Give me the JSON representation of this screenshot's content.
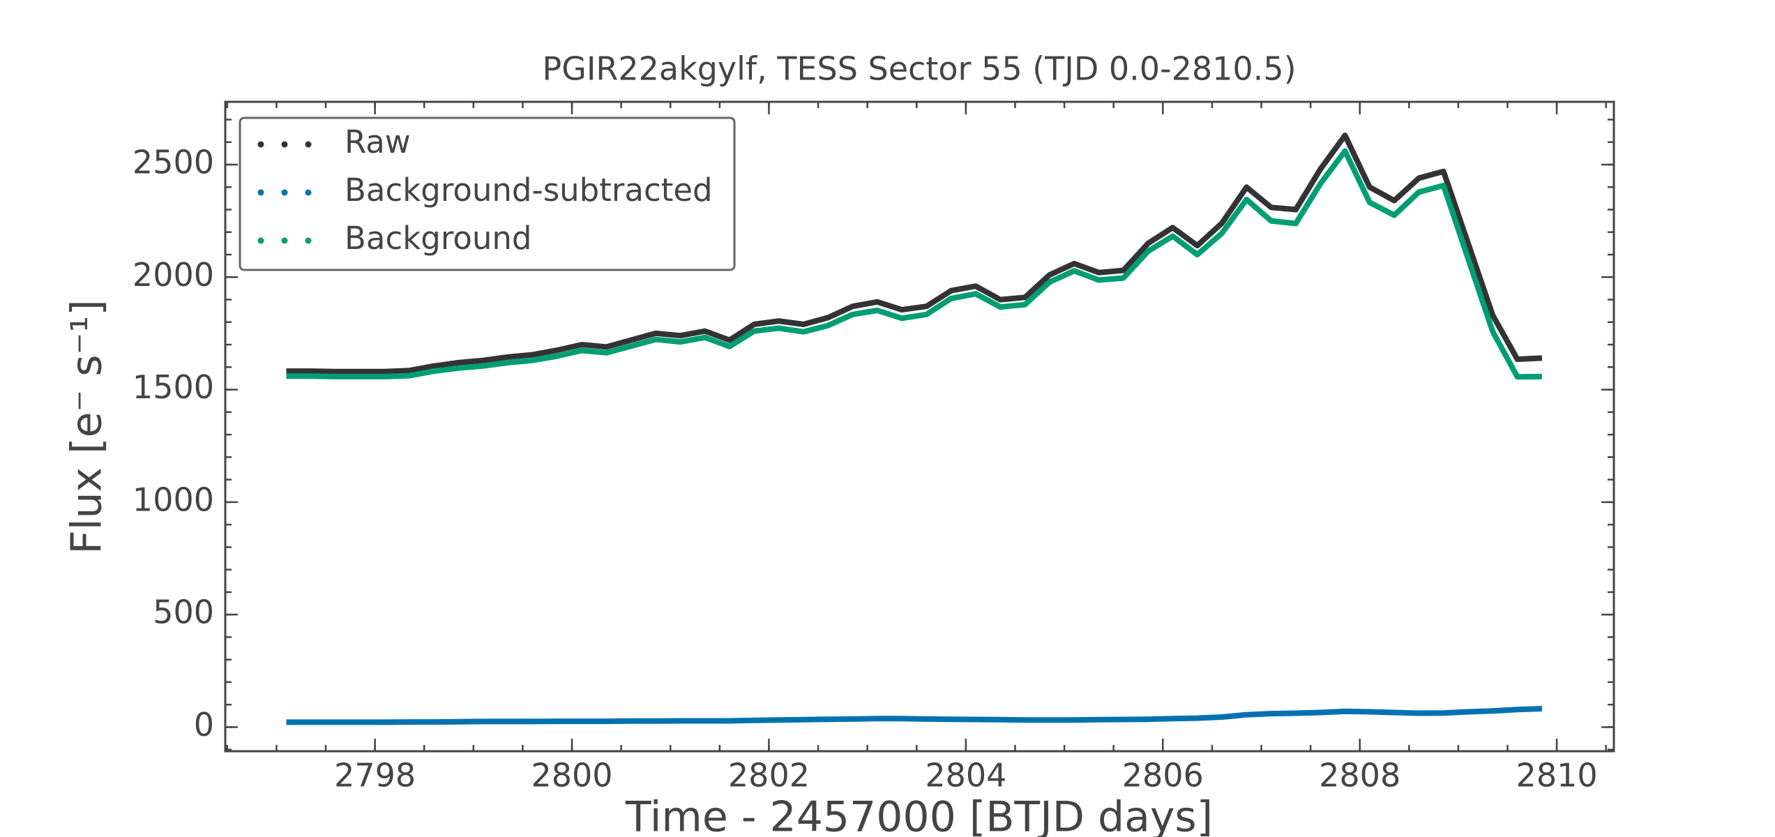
{
  "chart_data": {
    "type": "line",
    "title": "PGIR22akgylf, TESS Sector 55 (TJD 0.0-2810.5)",
    "x_label": "Time - 2457000 [BTJD days]",
    "y_label": "Flux [e⁻ s⁻¹]",
    "x": [
      2797.1,
      2797.35,
      2797.6,
      2797.85,
      2798.1,
      2798.35,
      2798.6,
      2798.85,
      2799.1,
      2799.35,
      2799.6,
      2799.85,
      2800.1,
      2800.35,
      2800.6,
      2800.85,
      2801.1,
      2801.35,
      2801.6,
      2801.85,
      2802.1,
      2802.35,
      2802.6,
      2802.85,
      2803.1,
      2803.35,
      2803.6,
      2803.85,
      2804.1,
      2804.35,
      2804.6,
      2804.85,
      2805.1,
      2805.35,
      2805.6,
      2805.85,
      2806.1,
      2806.35,
      2806.6,
      2806.85,
      2807.1,
      2807.35,
      2807.6,
      2807.85,
      2808.1,
      2808.35,
      2808.6,
      2808.85,
      2809.1,
      2809.35,
      2809.6,
      2809.85
    ],
    "series": [
      {
        "name": "Raw",
        "color": "#333333",
        "values": [
          1582,
          1582,
          1580,
          1580,
          1580,
          1585,
          1605,
          1620,
          1630,
          1645,
          1655,
          1675,
          1700,
          1690,
          1720,
          1750,
          1740,
          1760,
          1720,
          1790,
          1805,
          1790,
          1820,
          1870,
          1890,
          1855,
          1870,
          1940,
          1960,
          1900,
          1910,
          2010,
          2060,
          2020,
          2030,
          2150,
          2220,
          2140,
          2240,
          2400,
          2310,
          2300,
          2480,
          2630,
          2400,
          2340,
          2440,
          2470,
          2150,
          1830,
          1635,
          1640
        ]
      },
      {
        "name": "Background-subtracted",
        "color": "#0072b2",
        "values": [
          22,
          22,
          22,
          22,
          22,
          23,
          23,
          24,
          25,
          25,
          25,
          26,
          26,
          26,
          27,
          27,
          28,
          28,
          28,
          30,
          32,
          33,
          35,
          36,
          38,
          38,
          36,
          35,
          34,
          33,
          32,
          32,
          32,
          33,
          34,
          35,
          38,
          40,
          45,
          55,
          60,
          62,
          65,
          70,
          68,
          65,
          62,
          63,
          68,
          72,
          78,
          82
        ]
      },
      {
        "name": "Background",
        "color": "#009e73",
        "values": [
          1560,
          1560,
          1558,
          1558,
          1558,
          1562,
          1582,
          1596,
          1605,
          1620,
          1630,
          1649,
          1674,
          1664,
          1693,
          1723,
          1712,
          1732,
          1692,
          1760,
          1773,
          1757,
          1785,
          1834,
          1852,
          1817,
          1834,
          1905,
          1926,
          1867,
          1878,
          1978,
          2028,
          1987,
          1996,
          2115,
          2182,
          2100,
          2195,
          2345,
          2250,
          2238,
          2415,
          2560,
          2332,
          2275,
          2378,
          2407,
          2082,
          1758,
          1557,
          1558
        ]
      }
    ],
    "xlim": [
      2796.48,
      2810.58
    ],
    "ylim": [
      -107,
      2779
    ],
    "xticks": [
      2798,
      2800,
      2802,
      2804,
      2806,
      2808,
      2810
    ],
    "yticks": [
      0,
      500,
      1000,
      1500,
      2000,
      2500
    ],
    "legend": "upper left"
  }
}
